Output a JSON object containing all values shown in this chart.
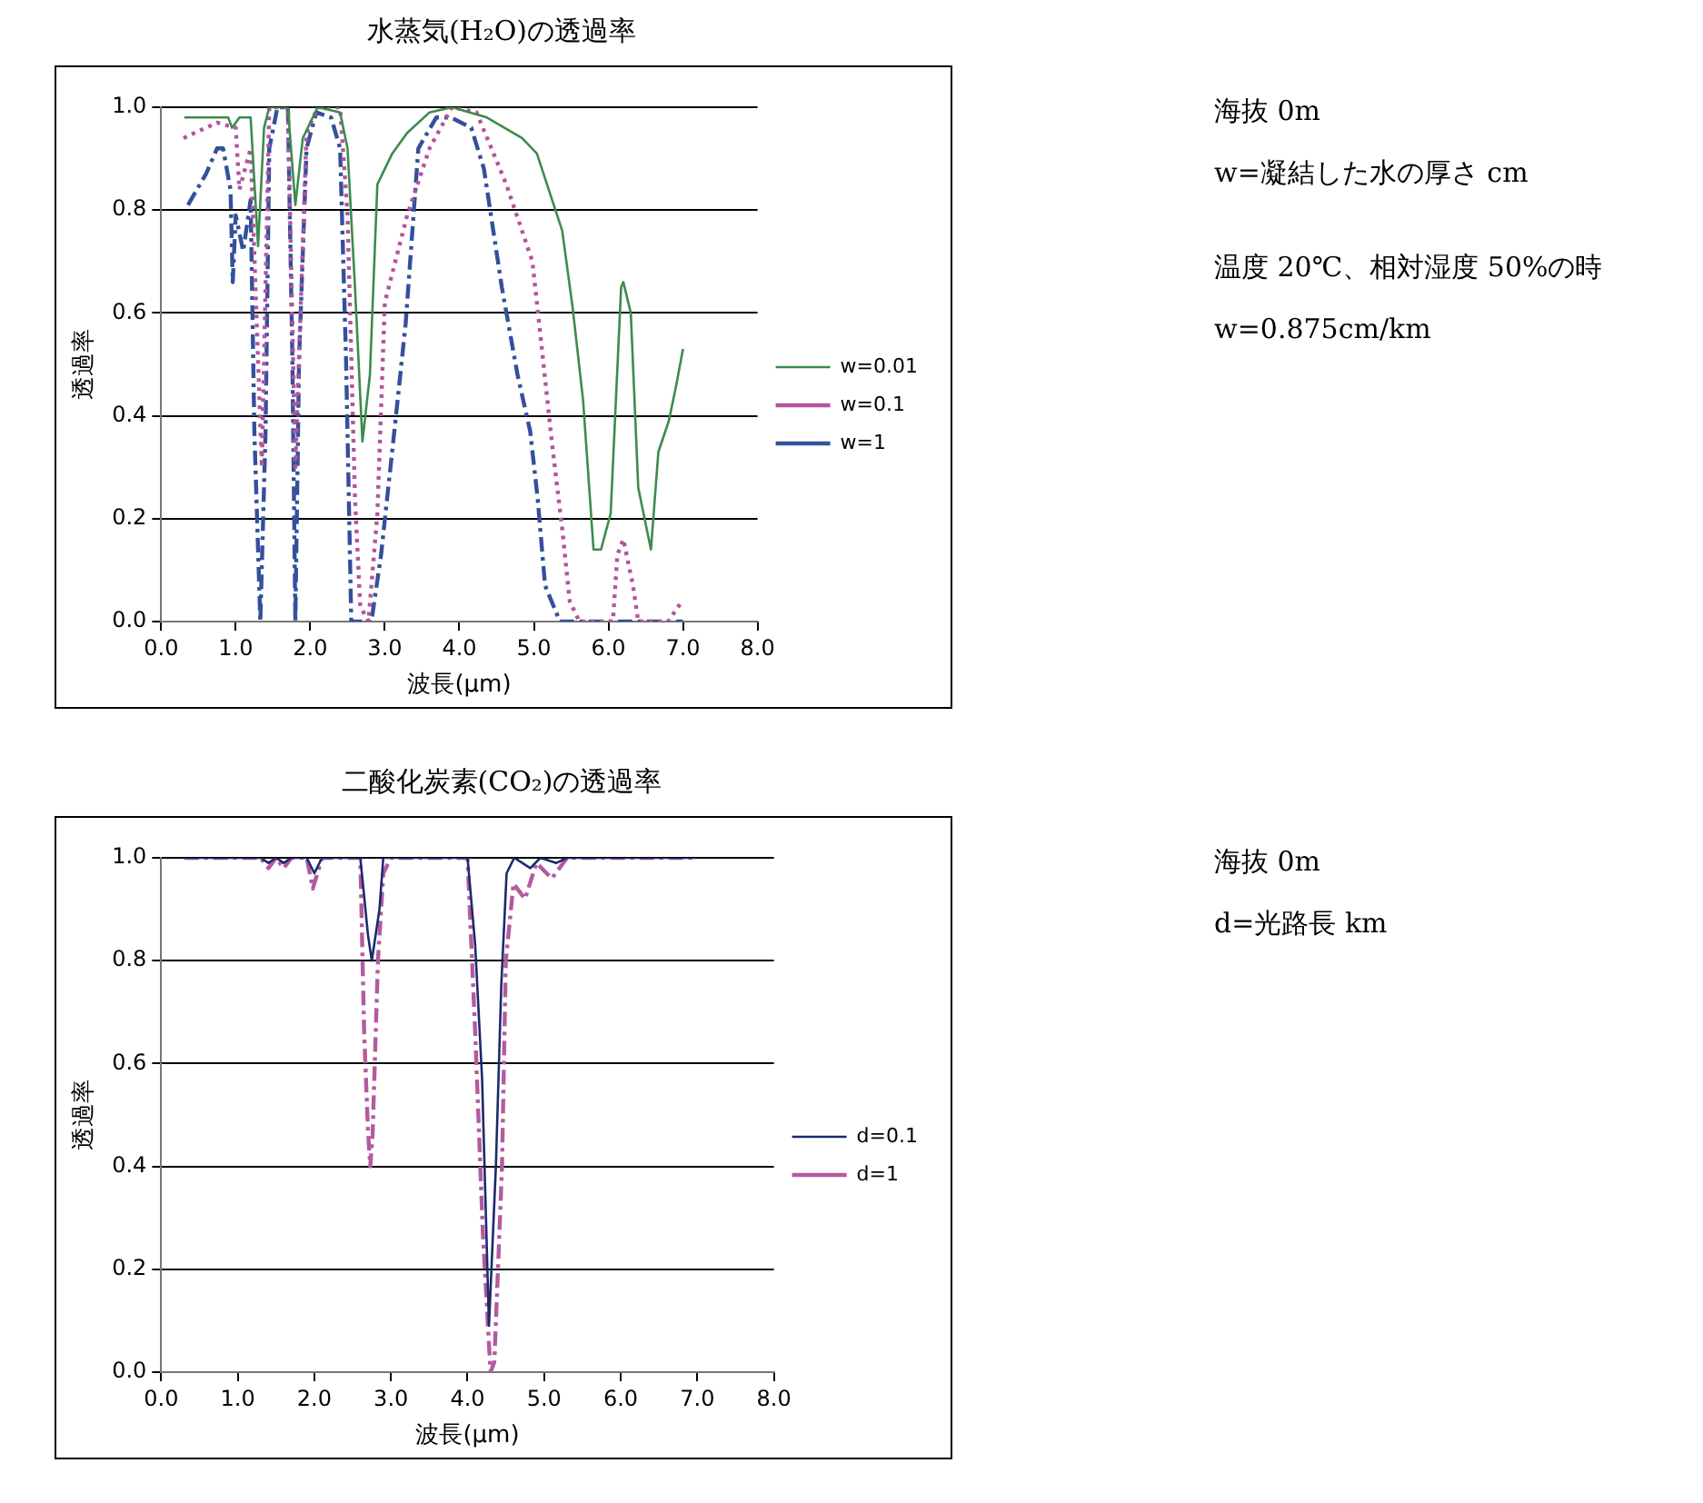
{
  "chart_data": [
    {
      "type": "line",
      "title": "水蒸気(H₂O)の透過率",
      "xlabel": "波長(μm)",
      "ylabel": "透過率",
      "xlim": [
        0,
        8
      ],
      "xticks": [
        {
          "value": 0,
          "label": "0.0"
        },
        {
          "value": 1,
          "label": "1.0"
        },
        {
          "value": 2,
          "label": "2.0"
        },
        {
          "value": 3,
          "label": "3.0"
        },
        {
          "value": 4,
          "label": "4.0"
        },
        {
          "value": 5,
          "label": "5.0"
        },
        {
          "value": 6,
          "label": "6.0"
        },
        {
          "value": 7,
          "label": "7.0"
        },
        {
          "value": 8,
          "label": "8.0"
        }
      ],
      "ylim": [
        0,
        1
      ],
      "yticks": [
        {
          "value": 0,
          "label": "0.0"
        },
        {
          "value": 0.2,
          "label": "0.2"
        },
        {
          "value": 0.4,
          "label": "0.4"
        },
        {
          "value": 0.6,
          "label": "0.6"
        },
        {
          "value": 0.8,
          "label": "0.8"
        },
        {
          "value": 1,
          "label": "1.0"
        }
      ],
      "grid": "y",
      "legend": "right",
      "marker": "none",
      "annotations": [
        "海抜 0m",
        "w=凝結した水の厚さ cm",
        "温度 20℃、相対湿度 50%の時",
        "w=0.875cm/km"
      ],
      "series": [
        {
          "name": "w=0.01",
          "color": "#3c8c4c",
          "line_style": "solid",
          "x": [
            0.31,
            0.9,
            0.95,
            1.05,
            1.2,
            1.3,
            1.38,
            1.45,
            1.7,
            1.8,
            1.9,
            2.1,
            2.4,
            2.5,
            2.6,
            2.7,
            2.8,
            2.9,
            3.1,
            3.3,
            3.6,
            3.9,
            4.37,
            4.84,
            5.04,
            5.38,
            5.52,
            5.66,
            5.8,
            5.9,
            6.03,
            6.17,
            6.2,
            6.3,
            6.4,
            6.57,
            6.67,
            6.81,
            6.91,
            7.0
          ],
          "values": [
            0.98,
            0.98,
            0.96,
            0.98,
            0.98,
            0.73,
            0.96,
            1.0,
            1.0,
            0.81,
            0.94,
            1.0,
            0.99,
            0.92,
            0.65,
            0.35,
            0.48,
            0.85,
            0.91,
            0.95,
            0.99,
            1.0,
            0.98,
            0.94,
            0.91,
            0.76,
            0.61,
            0.43,
            0.14,
            0.14,
            0.21,
            0.65,
            0.66,
            0.6,
            0.26,
            0.14,
            0.33,
            0.39,
            0.46,
            0.53
          ]
        },
        {
          "name": "w=0.1",
          "color": "#b4549c",
          "line_style": "dotted",
          "x": [
            0.3,
            0.75,
            1.0,
            1.05,
            1.2,
            1.35,
            1.45,
            1.7,
            1.8,
            1.95,
            2.1,
            2.4,
            2.5,
            2.6,
            2.67,
            2.78,
            2.9,
            3.0,
            3.3,
            3.6,
            3.9,
            4.23,
            4.63,
            4.98,
            5.1,
            5.24,
            5.38,
            5.48,
            5.61,
            6.06,
            6.12,
            6.2,
            6.33,
            6.4,
            6.8,
            6.99
          ],
          "values": [
            0.94,
            0.97,
            0.96,
            0.84,
            0.92,
            0.3,
            1.0,
            1.0,
            0.3,
            0.95,
            1.0,
            1.0,
            0.79,
            0.24,
            0.03,
            0.0,
            0.21,
            0.62,
            0.79,
            0.92,
            1.0,
            0.99,
            0.85,
            0.7,
            0.54,
            0.35,
            0.18,
            0.04,
            0.0,
            0.0,
            0.13,
            0.16,
            0.07,
            0.0,
            0.0,
            0.04
          ]
        },
        {
          "name": "w=1",
          "color": "#34509c",
          "line_style": "dashed",
          "x": [
            0.36,
            0.6,
            0.75,
            0.83,
            0.93,
            0.96,
            1.0,
            1.1,
            1.2,
            1.25,
            1.33,
            1.4,
            1.45,
            1.56,
            1.7,
            1.76,
            1.8,
            1.85,
            1.95,
            2.08,
            2.28,
            2.4,
            2.48,
            2.55,
            2.82,
            2.95,
            3.15,
            3.28,
            3.45,
            3.69,
            3.89,
            4.16,
            4.33,
            4.57,
            4.78,
            4.95,
            5.05,
            5.15,
            5.35,
            7.0
          ],
          "values": [
            0.81,
            0.87,
            0.92,
            0.92,
            0.84,
            0.66,
            0.79,
            0.72,
            0.82,
            0.37,
            0,
            0.37,
            0.92,
            1.0,
            1.0,
            0.51,
            0,
            0.51,
            0.92,
            0.99,
            0.98,
            0.92,
            0.51,
            0,
            0,
            0.13,
            0.4,
            0.58,
            0.92,
            0.98,
            0.98,
            0.96,
            0.88,
            0.65,
            0.48,
            0.37,
            0.24,
            0.07,
            0,
            0
          ]
        }
      ]
    },
    {
      "type": "line",
      "title": "二酸化炭素(CO₂)の透過率",
      "xlabel": "波長(μm)",
      "ylabel": "透過率",
      "xlim": [
        0,
        8
      ],
      "xticks": [
        {
          "value": 0,
          "label": "0.0"
        },
        {
          "value": 1,
          "label": "1.0"
        },
        {
          "value": 2,
          "label": "2.0"
        },
        {
          "value": 3,
          "label": "3.0"
        },
        {
          "value": 4,
          "label": "4.0"
        },
        {
          "value": 5,
          "label": "5.0"
        },
        {
          "value": 6,
          "label": "6.0"
        },
        {
          "value": 7,
          "label": "7.0"
        },
        {
          "value": 8,
          "label": "8.0"
        }
      ],
      "ylim": [
        0,
        1
      ],
      "yticks": [
        {
          "value": 0,
          "label": "0.0"
        },
        {
          "value": 0.2,
          "label": "0.2"
        },
        {
          "value": 0.4,
          "label": "0.4"
        },
        {
          "value": 0.6,
          "label": "0.6"
        },
        {
          "value": 0.8,
          "label": "0.8"
        },
        {
          "value": 1,
          "label": "1.0"
        }
      ],
      "grid": "y",
      "legend": "right",
      "marker": "none",
      "annotations": [
        "海抜 0m",
        "d=光路長 km"
      ],
      "series": [
        {
          "name": "d=0.1",
          "color": "#1c2a6c",
          "line_style": "solid",
          "x": [
            0.3,
            1.3,
            1.4,
            1.5,
            1.6,
            1.7,
            1.9,
            2.0,
            2.1,
            2.6,
            2.7,
            2.75,
            2.85,
            2.9,
            4.0,
            4.1,
            4.19,
            4.28,
            4.37,
            4.44,
            4.51,
            4.61,
            4.82,
            4.95,
            5.16,
            5.3,
            7.0
          ],
          "values": [
            1,
            1,
            0.99,
            1,
            0.99,
            1,
            1,
            0.97,
            1,
            1,
            0.85,
            0.8,
            0.9,
            1,
            1,
            0.83,
            0.57,
            0.09,
            0.4,
            0.75,
            0.97,
            1,
            0.98,
            1,
            0.99,
            1,
            1
          ]
        },
        {
          "name": "d=1",
          "color": "#b45aa0",
          "line_style": "dashed",
          "x": [
            0.3,
            1.3,
            1.4,
            1.5,
            1.6,
            1.7,
            1.9,
            1.98,
            2.1,
            2.6,
            2.65,
            2.7,
            2.73,
            2.76,
            2.83,
            2.9,
            3.0,
            4.0,
            4.1,
            4.2,
            4.3,
            4.35,
            4.45,
            4.5,
            4.6,
            4.75,
            4.9,
            5.1,
            5.3,
            7.0
          ],
          "values": [
            1,
            1,
            0.98,
            1,
            0.98,
            1,
            1,
            0.94,
            1,
            1,
            0.66,
            0.47,
            0.4,
            0.46,
            0.8,
            0.97,
            1,
            1,
            0.66,
            0.27,
            0,
            0.02,
            0.4,
            0.8,
            0.95,
            0.92,
            0.99,
            0.96,
            1,
            1
          ]
        }
      ]
    }
  ]
}
